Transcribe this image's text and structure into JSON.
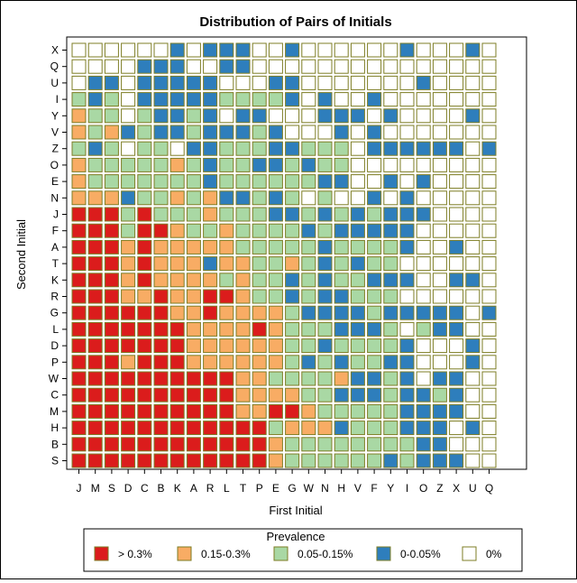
{
  "chart_data": {
    "type": "heatmap",
    "title": "Distribution of Pairs of Initials",
    "xlabel": "First Initial",
    "ylabel": "Second Initial",
    "x_categories": [
      "J",
      "M",
      "S",
      "D",
      "C",
      "B",
      "K",
      "A",
      "R",
      "L",
      "T",
      "P",
      "E",
      "G",
      "W",
      "N",
      "H",
      "V",
      "F",
      "Y",
      "I",
      "O",
      "Z",
      "X",
      "U",
      "Q"
    ],
    "y_categories": [
      "X",
      "Q",
      "U",
      "I",
      "Y",
      "V",
      "Z",
      "O",
      "E",
      "N",
      "J",
      "F",
      "A",
      "T",
      "K",
      "R",
      "G",
      "L",
      "D",
      "P",
      "W",
      "C",
      "M",
      "H",
      "B",
      "S"
    ],
    "value_encoding": "0 = 0%, 1 = 0-0.05%, 2 = 0.05-0.15%, 3 = 0.15-0.3%, 4 = > 0.3%",
    "grid": [
      "00000010111001000000100010",
      "00001110011000000000000000",
      "01101111100011000000010000",
      "21201111122221010010000000",
      "32202112101100011101000010",
      "32312112111210001010000000",
      "21202201122211222011111101",
      "32222232122112122000000000",
      "32222222122222211001010000",
      "33312232311212020010100000",
      "44424222322211212121110000",
      "44424432232222121111100000",
      "44434333332222212222100100",
      "44434333133223212122000000",
      "44434333323221212211100110",
      "44433433443221211222000000",
      "44444433433332111121111101",
      "44444443333432221112021100",
      "44444443333332212222100010",
      "44434443333332121221100010",
      "44444444443322223112101100",
      "44444444443333221112112100",
      "44444444443344322222111100",
      "44444444444423331222111010",
      "44444444444432222222211000",
      "44444444444432222221211100"
    ],
    "legend": {
      "title": "Prevalence",
      "position": "bottom",
      "items": [
        {
          "label": "> 0.3%",
          "level": 4
        },
        {
          "label": "0.15-0.3%",
          "level": 3
        },
        {
          "label": "0.05-0.15%",
          "level": 2
        },
        {
          "label": "0-0.05%",
          "level": 1
        },
        {
          "label": "0%",
          "level": 0
        }
      ]
    },
    "colors": {
      "level_0_fill": "#ffffff",
      "level_1_fill": "#2e7ebc",
      "level_2_fill": "#a9d8a4",
      "level_3_fill": "#f8ac64",
      "level_4_fill": "#db1c1c",
      "cell_border": "#7d7d24"
    }
  }
}
